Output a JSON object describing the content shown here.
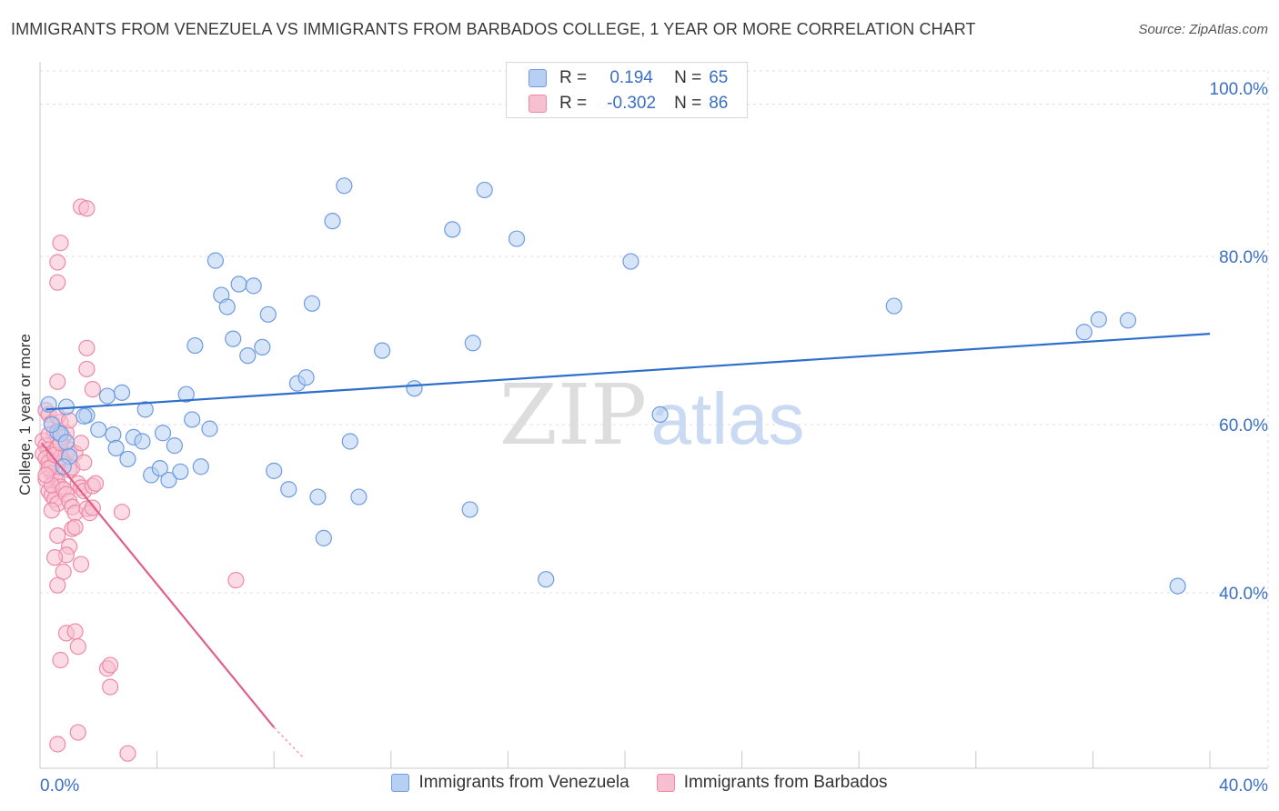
{
  "title": "IMMIGRANTS FROM VENEZUELA VS IMMIGRANTS FROM BARBADOS COLLEGE, 1 YEAR OR MORE CORRELATION CHART",
  "source": "Source: ZipAtlas.com",
  "watermark": {
    "zip": "ZIP",
    "atlas": "atlas"
  },
  "stats": {
    "blue": {
      "r_label": "R =",
      "r_value": "0.194",
      "n_label": "N =",
      "n_value": "65"
    },
    "pink": {
      "r_label": "R =",
      "r_value": "-0.302",
      "n_label": "N =",
      "n_value": "86"
    }
  },
  "colors": {
    "blue_fill": "#b7cff3",
    "blue_stroke": "#6f9be0",
    "blue_line": "#2f6fcc",
    "pink_fill": "#f7c0d0",
    "pink_stroke": "#ee8aa8",
    "pink_line": "#e0608a",
    "axis_text": "#3a6fc4",
    "grid": "#dcdcdc"
  },
  "chart_data": {
    "type": "scatter",
    "title": "IMMIGRANTS FROM VENEZUELA VS IMMIGRANTS FROM BARBADOS COLLEGE, 1 YEAR OR MORE CORRELATION CHART",
    "xlabel": "",
    "ylabel": "College, 1 year or more",
    "xlim": [
      0,
      40
    ],
    "ylim": [
      20,
      104
    ],
    "x_tick_labels": [
      {
        "value": 0,
        "label": "0.0%"
      },
      {
        "value": 40,
        "label": "40.0%"
      }
    ],
    "y_tick_labels": [
      {
        "value": 100,
        "label": "100.0%"
      },
      {
        "value": 80,
        "label": "80.0%"
      },
      {
        "value": 60,
        "label": "60.0%"
      },
      {
        "value": 40,
        "label": "40.0%"
      }
    ],
    "grid": true,
    "legend_position": "bottom",
    "series": [
      {
        "name": "Immigrants from Venezuela",
        "color": "#6f9be0",
        "trend": {
          "x": [
            0.2,
            40
          ],
          "y": [
            61.8,
            70.8
          ]
        },
        "points": [
          [
            0.3,
            62.4
          ],
          [
            0.9,
            62.1
          ],
          [
            0.6,
            59.1
          ],
          [
            0.7,
            58.9
          ],
          [
            0.9,
            57.9
          ],
          [
            1.0,
            56.2
          ],
          [
            0.8,
            55.0
          ],
          [
            1.6,
            61.1
          ],
          [
            2.3,
            63.4
          ],
          [
            2.8,
            63.8
          ],
          [
            2.0,
            59.4
          ],
          [
            2.5,
            58.8
          ],
          [
            2.6,
            57.2
          ],
          [
            3.0,
            55.9
          ],
          [
            3.2,
            58.5
          ],
          [
            3.5,
            58.0
          ],
          [
            3.6,
            61.8
          ],
          [
            3.8,
            54.0
          ],
          [
            4.1,
            54.8
          ],
          [
            4.2,
            59.0
          ],
          [
            4.4,
            53.4
          ],
          [
            4.6,
            57.5
          ],
          [
            4.8,
            54.4
          ],
          [
            5.0,
            63.6
          ],
          [
            5.2,
            60.6
          ],
          [
            5.3,
            69.4
          ],
          [
            5.5,
            55.0
          ],
          [
            5.8,
            59.5
          ],
          [
            6.0,
            79.5
          ],
          [
            6.2,
            75.4
          ],
          [
            6.4,
            74.0
          ],
          [
            6.6,
            70.2
          ],
          [
            6.8,
            76.7
          ],
          [
            7.1,
            68.2
          ],
          [
            7.3,
            76.5
          ],
          [
            7.6,
            69.2
          ],
          [
            7.8,
            73.1
          ],
          [
            8.0,
            54.5
          ],
          [
            8.5,
            52.3
          ],
          [
            8.8,
            64.9
          ],
          [
            9.1,
            65.6
          ],
          [
            9.3,
            74.4
          ],
          [
            9.5,
            51.4
          ],
          [
            9.7,
            46.5
          ],
          [
            10.0,
            84.2
          ],
          [
            10.4,
            88.4
          ],
          [
            10.6,
            58.0
          ],
          [
            10.9,
            51.4
          ],
          [
            11.7,
            68.8
          ],
          [
            12.8,
            64.3
          ],
          [
            14.1,
            83.2
          ],
          [
            14.8,
            69.7
          ],
          [
            15.2,
            87.9
          ],
          [
            14.7,
            49.9
          ],
          [
            16.3,
            82.1
          ],
          [
            17.3,
            41.6
          ],
          [
            20.2,
            79.4
          ],
          [
            21.2,
            61.2
          ],
          [
            29.2,
            74.1
          ],
          [
            35.7,
            71.0
          ],
          [
            36.2,
            72.5
          ],
          [
            37.2,
            72.4
          ],
          [
            38.9,
            40.8
          ],
          [
            1.5,
            61.0
          ],
          [
            0.4,
            60.0
          ]
        ]
      },
      {
        "name": "Immigrants from Barbados",
        "color": "#ee8aa8",
        "trend": {
          "x": [
            0.05,
            8.0
          ],
          "y": [
            57.8,
            24.0
          ]
        },
        "trend_dashed": {
          "x": [
            8.0,
            9.0
          ],
          "y": [
            24.0,
            20.4
          ]
        },
        "points": [
          [
            0.2,
            61.7
          ],
          [
            0.3,
            61.2
          ],
          [
            0.4,
            60.2
          ],
          [
            0.5,
            59.0
          ],
          [
            0.1,
            58.1
          ],
          [
            0.2,
            57.5
          ],
          [
            0.3,
            57.0
          ],
          [
            0.1,
            56.5
          ],
          [
            0.2,
            56.0
          ],
          [
            0.3,
            55.5
          ],
          [
            0.4,
            55.0
          ],
          [
            0.5,
            56.8
          ],
          [
            0.6,
            57.2
          ],
          [
            0.7,
            56.1
          ],
          [
            0.8,
            55.7
          ],
          [
            0.9,
            56.4
          ],
          [
            1.0,
            57.0
          ],
          [
            0.4,
            54.2
          ],
          [
            0.5,
            53.7
          ],
          [
            0.6,
            53.2
          ],
          [
            0.7,
            52.6
          ],
          [
            0.3,
            52.1
          ],
          [
            0.4,
            51.6
          ],
          [
            0.5,
            51.1
          ],
          [
            0.6,
            50.6
          ],
          [
            0.2,
            53.5
          ],
          [
            0.3,
            54.8
          ],
          [
            0.4,
            52.8
          ],
          [
            0.8,
            52.3
          ],
          [
            0.9,
            51.7
          ],
          [
            1.0,
            50.9
          ],
          [
            1.1,
            50.2
          ],
          [
            1.2,
            49.5
          ],
          [
            1.3,
            53.0
          ],
          [
            1.4,
            52.5
          ],
          [
            1.5,
            52.1
          ],
          [
            1.6,
            50.0
          ],
          [
            1.7,
            49.5
          ],
          [
            1.8,
            52.7
          ],
          [
            1.9,
            53.0
          ],
          [
            1.0,
            54.6
          ],
          [
            1.1,
            54.9
          ],
          [
            1.2,
            56.6
          ],
          [
            1.4,
            57.8
          ],
          [
            0.8,
            58.5
          ],
          [
            0.9,
            59.0
          ],
          [
            0.7,
            60.3
          ],
          [
            0.6,
            61.0
          ],
          [
            1.0,
            60.5
          ],
          [
            0.6,
            65.1
          ],
          [
            1.6,
            66.6
          ],
          [
            1.6,
            69.1
          ],
          [
            1.8,
            64.2
          ],
          [
            0.6,
            79.3
          ],
          [
            0.6,
            76.9
          ],
          [
            0.7,
            81.6
          ],
          [
            1.4,
            85.9
          ],
          [
            1.6,
            85.7
          ],
          [
            0.6,
            46.8
          ],
          [
            1.0,
            45.5
          ],
          [
            1.1,
            47.6
          ],
          [
            0.9,
            44.5
          ],
          [
            0.5,
            44.2
          ],
          [
            0.8,
            42.5
          ],
          [
            0.6,
            40.9
          ],
          [
            1.4,
            43.4
          ],
          [
            2.8,
            49.6
          ],
          [
            0.9,
            35.2
          ],
          [
            1.2,
            35.4
          ],
          [
            1.3,
            33.6
          ],
          [
            0.7,
            32.0
          ],
          [
            2.3,
            31.0
          ],
          [
            2.4,
            31.4
          ],
          [
            2.4,
            28.8
          ],
          [
            0.6,
            22.0
          ],
          [
            1.3,
            23.4
          ],
          [
            3.0,
            20.9
          ],
          [
            6.7,
            41.5
          ],
          [
            1.8,
            50.1
          ],
          [
            1.5,
            55.5
          ],
          [
            0.3,
            58.8
          ],
          [
            0.5,
            56.4
          ],
          [
            0.7,
            57.8
          ],
          [
            0.2,
            54.0
          ],
          [
            1.2,
            47.8
          ],
          [
            0.4,
            49.8
          ]
        ]
      }
    ]
  },
  "legend": {
    "blue_label": "Immigrants from Venezuela",
    "pink_label": "Immigrants from Barbados"
  }
}
